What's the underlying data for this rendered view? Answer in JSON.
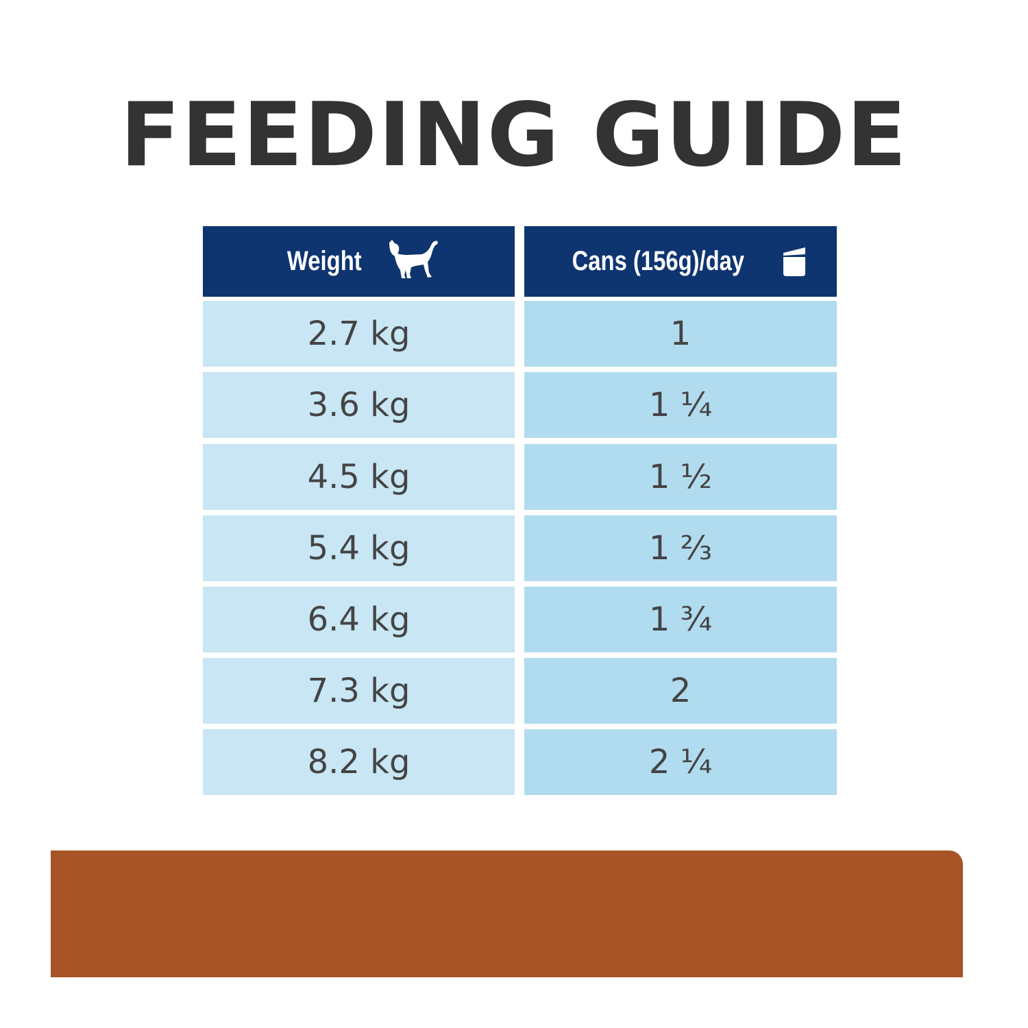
{
  "title": "FEEDING GUIDE",
  "table": {
    "headers": {
      "weight": {
        "label": "Weight",
        "icon": "cat-icon"
      },
      "cans": {
        "label": "Cans (156g)/day",
        "icon": "can-icon"
      }
    },
    "rows": [
      {
        "weight": "2.7 kg",
        "cans": "1"
      },
      {
        "weight": "3.6 kg",
        "cans": "1 ¼"
      },
      {
        "weight": "4.5 kg",
        "cans": "1 ½"
      },
      {
        "weight": "5.4 kg",
        "cans": "1 ⅔"
      },
      {
        "weight": "6.4 kg",
        "cans": "1 ¾"
      },
      {
        "weight": "7.3 kg",
        "cans": "2"
      },
      {
        "weight": "8.2 kg",
        "cans": "2 ¼"
      }
    ]
  },
  "colors": {
    "header_bg": "#0f3571",
    "left_cell_bg": "#c8e6f4",
    "right_cell_bg": "#b1dbef",
    "title_text": "#333333",
    "bottom_bar": "#a75427"
  }
}
